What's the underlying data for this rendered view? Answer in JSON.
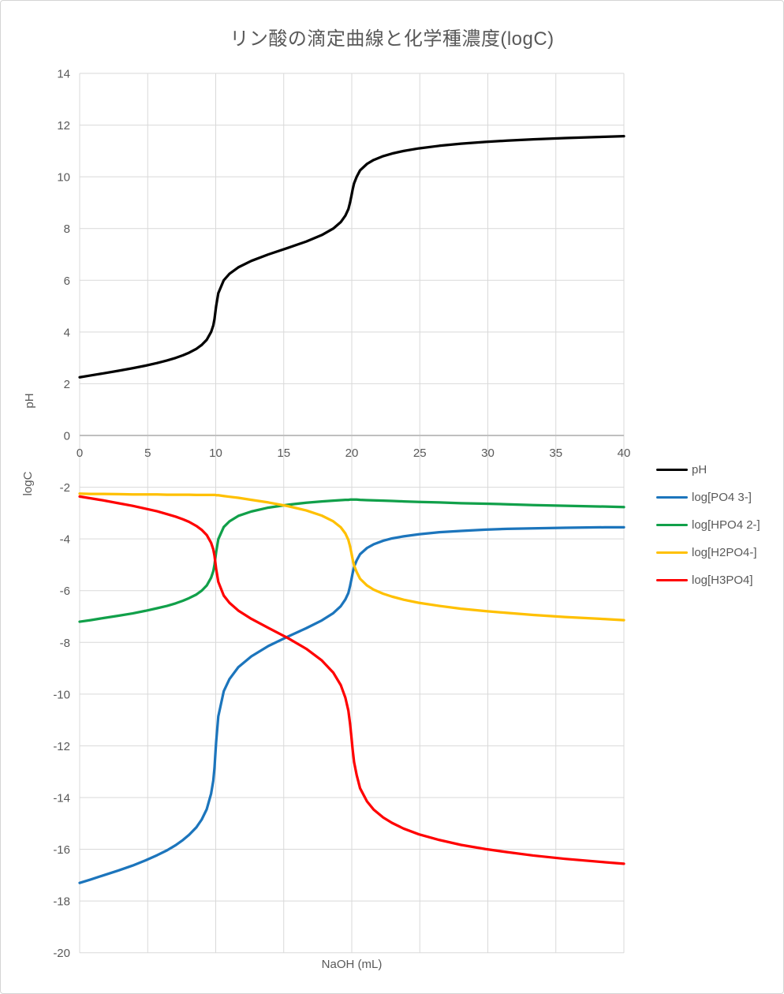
{
  "title": "リン酸の滴定曲線と化学種濃度(logC)",
  "axes": {
    "x_title": "NaOH (mL)",
    "y_title_upper": "pH",
    "y_title_lower": "logC",
    "x_ticks": [
      0,
      5,
      10,
      15,
      20,
      25,
      30,
      35,
      40
    ],
    "y_ticks": [
      14,
      12,
      10,
      8,
      6,
      4,
      2,
      0,
      -2,
      -4,
      -6,
      -8,
      -10,
      -12,
      -14,
      -16,
      -18,
      -20
    ],
    "x_range": [
      0,
      40
    ],
    "y_range": [
      -20,
      14
    ],
    "grid": true
  },
  "colors": {
    "grid": "#D9D9D9",
    "axis_line": "#BFBFBF",
    "text": "#595959",
    "title": "#595959",
    "border": "#D4D4D4"
  },
  "legend": {
    "position": "right"
  },
  "chart_data": {
    "type": "line",
    "title": "リン酸の滴定曲線と化学種濃度(logC)",
    "xlabel": "NaOH (mL)",
    "ylabel": "pH (upper section) / logC (lower section)",
    "xlim": [
      0,
      40
    ],
    "ylim": [
      -20,
      14
    ],
    "grid": true,
    "legend_position": "right",
    "x": [
      0,
      0.8,
      1.73,
      2.85,
      3.89,
      4.84,
      5.69,
      6.42,
      7.06,
      7.59,
      8.04,
      8.58,
      8.97,
      9.34,
      9.66,
      9.82,
      9.91,
      9.97,
      10.03,
      10.19,
      10.59,
      11.01,
      11.66,
      12.62,
      13.87,
      15.29,
      16.66,
      17.8,
      18.64,
      19.19,
      19.53,
      19.75,
      19.87,
      19.97,
      20.06,
      20.17,
      20.36,
      20.61,
      21.12,
      21.6,
      22.31,
      22.96,
      23.81,
      24.93,
      26.44,
      28.03,
      29.82,
      31.41,
      33.33,
      35.68,
      38.62,
      40
    ],
    "series": [
      {
        "name": "pH",
        "color": "#000000",
        "values": [
          2.25,
          2.32,
          2.4,
          2.5,
          2.6,
          2.7,
          2.8,
          2.9,
          3,
          3.1,
          3.2,
          3.35,
          3.5,
          3.7,
          4,
          4.25,
          4.5,
          4.75,
          5,
          5.5,
          6,
          6.25,
          6.5,
          6.75,
          7,
          7.25,
          7.5,
          7.75,
          8,
          8.25,
          8.5,
          8.75,
          9,
          9.25,
          9.5,
          9.75,
          10,
          10.25,
          10.5,
          10.65,
          10.8,
          10.9,
          11,
          11.1,
          11.2,
          11.28,
          11.35,
          11.4,
          11.45,
          11.5,
          11.55,
          11.57
        ]
      },
      {
        "name": "log[PO4 3-]",
        "color": "#1C75BC",
        "values": [
          -17.3,
          -17.17,
          -17.01,
          -16.82,
          -16.63,
          -16.43,
          -16.23,
          -16.04,
          -15.84,
          -15.64,
          -15.44,
          -15.15,
          -14.85,
          -14.45,
          -13.85,
          -13.35,
          -12.85,
          -12.35,
          -11.86,
          -10.86,
          -9.89,
          -9.42,
          -8.96,
          -8.54,
          -8.14,
          -7.78,
          -7.45,
          -7.15,
          -6.87,
          -6.6,
          -6.34,
          -6.09,
          -5.83,
          -5.58,
          -5.33,
          -5.08,
          -4.83,
          -4.59,
          -4.35,
          -4.21,
          -4.07,
          -3.98,
          -3.9,
          -3.82,
          -3.74,
          -3.69,
          -3.64,
          -3.61,
          -3.59,
          -3.57,
          -3.55,
          -3.55
        ]
      },
      {
        "name": "log[HPO4 2-]",
        "color": "#11A04A",
        "values": [
          -7.2,
          -7.14,
          -7.06,
          -6.97,
          -6.88,
          -6.78,
          -6.68,
          -6.59,
          -6.49,
          -6.39,
          -6.29,
          -6.15,
          -6,
          -5.8,
          -5.5,
          -5.25,
          -5,
          -4.75,
          -4.51,
          -4.01,
          -3.54,
          -3.32,
          -3.11,
          -2.94,
          -2.79,
          -2.68,
          -2.6,
          -2.55,
          -2.52,
          -2.5,
          -2.49,
          -2.49,
          -2.48,
          -2.48,
          -2.48,
          -2.48,
          -2.48,
          -2.49,
          -2.5,
          -2.51,
          -2.52,
          -2.53,
          -2.55,
          -2.57,
          -2.59,
          -2.62,
          -2.64,
          -2.66,
          -2.69,
          -2.72,
          -2.75,
          -2.77
        ]
      },
      {
        "name": "log[H2PO4-]",
        "color": "#FFC000",
        "values": [
          -2.25,
          -2.26,
          -2.26,
          -2.27,
          -2.28,
          -2.28,
          -2.28,
          -2.29,
          -2.29,
          -2.29,
          -2.29,
          -2.3,
          -2.3,
          -2.3,
          -2.3,
          -2.3,
          -2.3,
          -2.3,
          -2.31,
          -2.31,
          -2.34,
          -2.37,
          -2.41,
          -2.49,
          -2.59,
          -2.73,
          -2.9,
          -3.1,
          -3.32,
          -3.55,
          -3.79,
          -4.04,
          -4.28,
          -4.53,
          -4.78,
          -5.03,
          -5.28,
          -5.54,
          -5.8,
          -5.96,
          -6.12,
          -6.23,
          -6.35,
          -6.47,
          -6.59,
          -6.7,
          -6.79,
          -6.86,
          -6.94,
          -7.02,
          -7.1,
          -7.14
        ]
      },
      {
        "name": "log[H3PO4]",
        "color": "#FF0000",
        "values": [
          -2.36,
          -2.43,
          -2.51,
          -2.62,
          -2.72,
          -2.83,
          -2.93,
          -3.04,
          -3.14,
          -3.24,
          -3.34,
          -3.5,
          -3.65,
          -3.85,
          -4.15,
          -4.4,
          -4.65,
          -4.9,
          -5.16,
          -5.66,
          -6.19,
          -6.47,
          -6.77,
          -7.09,
          -7.44,
          -7.83,
          -8.25,
          -8.7,
          -9.17,
          -9.65,
          -10.14,
          -10.64,
          -11.13,
          -11.63,
          -12.13,
          -12.63,
          -13.13,
          -13.64,
          -14.15,
          -14.46,
          -14.77,
          -14.98,
          -15.2,
          -15.42,
          -15.64,
          -15.83,
          -15.99,
          -16.11,
          -16.24,
          -16.37,
          -16.5,
          -16.56
        ]
      }
    ]
  }
}
